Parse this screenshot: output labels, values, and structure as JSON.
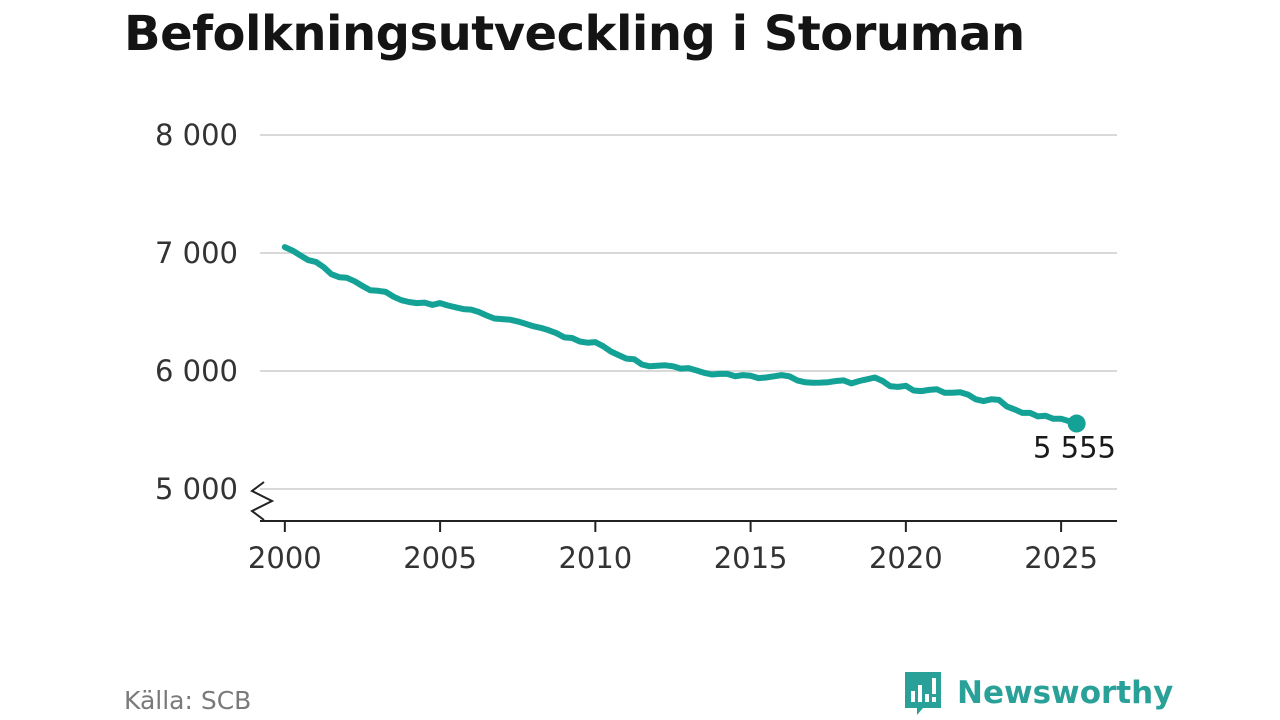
{
  "title": "Befolkningsutveckling i Storuman",
  "source": "Källa: SCB",
  "brand": {
    "name": "Newsworthy",
    "logo_icon": "bar-chart-speech-bubble-icon",
    "color": "#2aa198"
  },
  "end_label": "5 555",
  "colors": {
    "line": "#14a196",
    "grid": "#d9d9d9",
    "axis": "#222222",
    "title": "#141414"
  },
  "chart_data": {
    "type": "line",
    "title": "Befolkningsutveckling i Storuman",
    "xlabel": "",
    "ylabel": "",
    "xlim": [
      1999.2,
      2026.8
    ],
    "ylim": [
      5000,
      8000
    ],
    "axis_break": true,
    "grid": "horizontal",
    "yticks": [
      5000,
      6000,
      7000,
      8000
    ],
    "ytick_labels": [
      "5 000",
      "6 000",
      "7 000",
      "8 000"
    ],
    "xticks": [
      2000,
      2005,
      2010,
      2015,
      2020,
      2025
    ],
    "xtick_labels": [
      "2000",
      "2005",
      "2010",
      "2015",
      "2020",
      "2025"
    ],
    "series": [
      {
        "x": [
          2000.0,
          2000.25,
          2000.5,
          2000.75,
          2001.0,
          2001.25,
          2001.5,
          2001.75,
          2002.0,
          2002.25,
          2002.5,
          2002.75,
          2003.0,
          2003.25,
          2003.5,
          2003.75,
          2004.0,
          2004.25,
          2004.5,
          2004.75,
          2005.0,
          2005.25,
          2005.5,
          2005.75,
          2006.0,
          2006.25,
          2006.5,
          2006.75,
          2007.0,
          2007.25,
          2007.5,
          2007.75,
          2008.0,
          2008.25,
          2008.5,
          2008.75,
          2009.0,
          2009.25,
          2009.5,
          2009.75,
          2010.0,
          2010.25,
          2010.5,
          2010.75,
          2011.0,
          2011.25,
          2011.5,
          2011.75,
          2012.0,
          2012.25,
          2012.5,
          2012.75,
          2013.0,
          2013.25,
          2013.5,
          2013.75,
          2014.0,
          2014.25,
          2014.5,
          2014.75,
          2015.0,
          2015.25,
          2015.5,
          2015.75,
          2016.0,
          2016.25,
          2016.5,
          2016.75,
          2017.0,
          2017.25,
          2017.5,
          2017.75,
          2018.0,
          2018.25,
          2018.5,
          2018.75,
          2019.0,
          2019.25,
          2019.5,
          2019.75,
          2020.0,
          2020.25,
          2020.5,
          2020.75,
          2021.0,
          2021.25,
          2021.5,
          2021.75,
          2022.0,
          2022.25,
          2022.5,
          2022.75,
          2023.0,
          2023.25,
          2023.5,
          2023.75,
          2024.0,
          2024.25,
          2024.5,
          2024.75,
          2025.0,
          2025.25,
          2025.5
        ],
        "values": [
          7050,
          7020,
          6980,
          6940,
          6925,
          6880,
          6820,
          6795,
          6790,
          6760,
          6720,
          6685,
          6680,
          6670,
          6630,
          6600,
          6585,
          6575,
          6580,
          6560,
          6575,
          6555,
          6540,
          6525,
          6520,
          6500,
          6470,
          6445,
          6440,
          6435,
          6420,
          6400,
          6380,
          6365,
          6345,
          6320,
          6285,
          6280,
          6250,
          6240,
          6245,
          6210,
          6165,
          6135,
          6105,
          6100,
          6055,
          6040,
          6045,
          6048,
          6040,
          6020,
          6025,
          6005,
          5985,
          5970,
          5975,
          5975,
          5955,
          5965,
          5960,
          5940,
          5945,
          5955,
          5965,
          5955,
          5920,
          5905,
          5900,
          5902,
          5905,
          5915,
          5920,
          5895,
          5915,
          5930,
          5945,
          5915,
          5870,
          5865,
          5875,
          5835,
          5830,
          5840,
          5845,
          5815,
          5815,
          5820,
          5800,
          5760,
          5745,
          5760,
          5755,
          5700,
          5675,
          5645,
          5645,
          5615,
          5620,
          5595,
          5595,
          5575,
          5555
        ]
      }
    ]
  }
}
